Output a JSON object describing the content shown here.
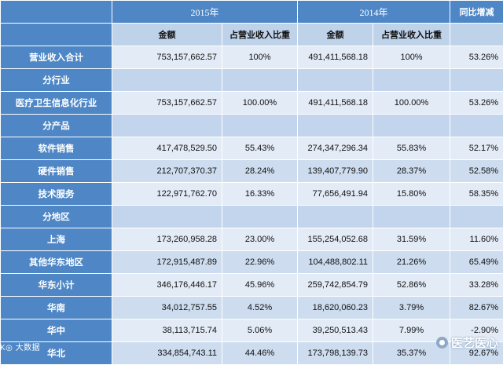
{
  "header": {
    "year_2015": "2015年",
    "year_2014": "2014年",
    "yoy": "同比增减",
    "amount_label": "金额",
    "share_label": "占营业收入比重"
  },
  "rows": [
    {
      "label": "营业收入合计",
      "a2015": "753,157,662.57",
      "p2015": "100%",
      "a2014": "491,411,568.18",
      "p2014": "100%",
      "yoy": "53.26%"
    },
    {
      "label": "分行业",
      "a2015": "",
      "p2015": "",
      "a2014": "",
      "p2014": "",
      "yoy": ""
    },
    {
      "label": "医疗卫生信息化行业",
      "a2015": "753,157,662.57",
      "p2015": "100.00%",
      "a2014": "491,411,568.18",
      "p2014": "100.00%",
      "yoy": "53.26%"
    },
    {
      "label": "分产品",
      "a2015": "",
      "p2015": "",
      "a2014": "",
      "p2014": "",
      "yoy": ""
    },
    {
      "label": "软件销售",
      "a2015": "417,478,529.50",
      "p2015": "55.43%",
      "a2014": "274,347,296.34",
      "p2014": "55.83%",
      "yoy": "52.17%"
    },
    {
      "label": "硬件销售",
      "a2015": "212,707,370.37",
      "p2015": "28.24%",
      "a2014": "139,407,779.90",
      "p2014": "28.37%",
      "yoy": "52.58%"
    },
    {
      "label": "技术服务",
      "a2015": "122,971,762.70",
      "p2015": "16.33%",
      "a2014": "77,656,491.94",
      "p2014": "15.80%",
      "yoy": "58.35%"
    },
    {
      "label": "分地区",
      "a2015": "",
      "p2015": "",
      "a2014": "",
      "p2014": "",
      "yoy": ""
    },
    {
      "label": "上海",
      "a2015": "173,260,958.28",
      "p2015": "23.00%",
      "a2014": "155,254,052.68",
      "p2014": "31.59%",
      "yoy": "11.60%"
    },
    {
      "label": "其他华东地区",
      "a2015": "172,915,487.89",
      "p2015": "22.96%",
      "a2014": "104,488,802.11",
      "p2014": "21.26%",
      "yoy": "65.49%"
    },
    {
      "label": "华东小计",
      "a2015": "346,176,446.17",
      "p2015": "45.96%",
      "a2014": "259,742,854.79",
      "p2014": "52.86%",
      "yoy": "33.28%"
    },
    {
      "label": "华南",
      "a2015": "34,012,757.55",
      "p2015": "4.52%",
      "a2014": "18,620,060.23",
      "p2014": "3.79%",
      "yoy": "82.67%"
    },
    {
      "label": "华中",
      "a2015": "38,113,715.74",
      "p2015": "5.06%",
      "a2014": "39,250,513.43",
      "p2014": "7.99%",
      "yoy": "-2.90%"
    },
    {
      "label": "华北",
      "a2015": "334,854,743.11",
      "p2015": "44.46%",
      "a2014": "173,798,139.73",
      "p2014": "35.37%",
      "yoy": "92.67%"
    }
  ],
  "watermark": {
    "left_text": "K◎ 大数据",
    "right_text": "医艺医心"
  }
}
